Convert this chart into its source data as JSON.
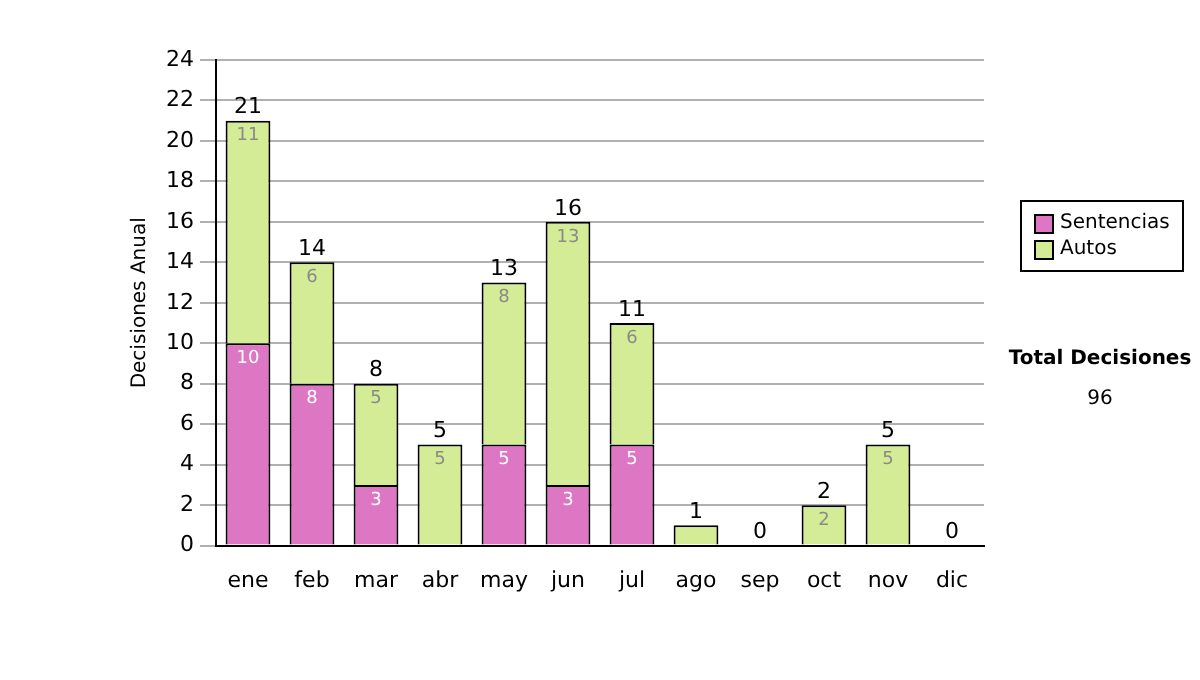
{
  "chart_data": {
    "type": "bar",
    "stacked": true,
    "ylabel": "Decisiones Anual",
    "categories": [
      "ene",
      "feb",
      "mar",
      "abr",
      "may",
      "jun",
      "jul",
      "ago",
      "sep",
      "oct",
      "nov",
      "dic"
    ],
    "series": [
      {
        "name": "Sentencias",
        "color": "#dd77c4",
        "values": [
          10,
          8,
          3,
          0,
          5,
          3,
          5,
          0,
          0,
          0,
          0,
          0
        ],
        "value_labels": [
          "10",
          "8",
          "3",
          null,
          "5",
          "3",
          "5",
          null,
          null,
          null,
          null,
          null
        ]
      },
      {
        "name": "Autos",
        "color": "#d4ec96",
        "values": [
          11,
          6,
          5,
          5,
          8,
          13,
          6,
          1,
          0,
          2,
          5,
          0
        ],
        "value_labels": [
          "11",
          "6",
          "5",
          "5",
          "8",
          "13",
          "6",
          null,
          null,
          "2",
          "5",
          null
        ]
      }
    ],
    "totals": [
      "21",
      "14",
      "8",
      "5",
      "13",
      "16",
      "11",
      "1",
      "0",
      "2",
      "5",
      "0"
    ],
    "ylim": [
      0,
      24
    ],
    "yticks": [
      0,
      2,
      4,
      6,
      8,
      10,
      12,
      14,
      16,
      18,
      20,
      22,
      24
    ],
    "grid": "y",
    "legend": "right",
    "annotations": [
      "Total Decisiones",
      "96"
    ]
  }
}
